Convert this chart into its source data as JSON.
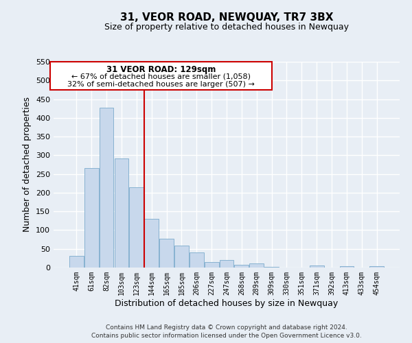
{
  "title": "31, VEOR ROAD, NEWQUAY, TR7 3BX",
  "subtitle": "Size of property relative to detached houses in Newquay",
  "xlabel": "Distribution of detached houses by size in Newquay",
  "ylabel": "Number of detached properties",
  "bar_color": "#c8d8ec",
  "bar_edge_color": "#7aaacb",
  "categories": [
    "41sqm",
    "61sqm",
    "82sqm",
    "103sqm",
    "123sqm",
    "144sqm",
    "165sqm",
    "185sqm",
    "206sqm",
    "227sqm",
    "247sqm",
    "268sqm",
    "289sqm",
    "309sqm",
    "330sqm",
    "351sqm",
    "371sqm",
    "392sqm",
    "413sqm",
    "433sqm",
    "454sqm"
  ],
  "values": [
    32,
    265,
    428,
    292,
    215,
    130,
    77,
    59,
    40,
    14,
    20,
    7,
    11,
    1,
    0,
    0,
    5,
    0,
    3,
    0,
    3
  ],
  "ylim": [
    0,
    550
  ],
  "yticks": [
    0,
    50,
    100,
    150,
    200,
    250,
    300,
    350,
    400,
    450,
    500,
    550
  ],
  "vline_x_index": 4.5,
  "vline_color": "#cc0000",
  "annotation_title": "31 VEOR ROAD: 129sqm",
  "annotation_line1": "← 67% of detached houses are smaller (1,058)",
  "annotation_line2": "32% of semi-detached houses are larger (507) →",
  "annotation_box_color": "#ffffff",
  "annotation_box_edge": "#cc0000",
  "footer_line1": "Contains HM Land Registry data © Crown copyright and database right 2024.",
  "footer_line2": "Contains public sector information licensed under the Open Government Licence v3.0.",
  "background_color": "#e8eef5",
  "grid_color": "#ffffff"
}
